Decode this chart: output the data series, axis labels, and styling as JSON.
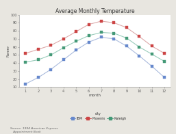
{
  "title": "Average Monthly Temperature",
  "xlabel": "month",
  "ylabel": "Farenr",
  "months": [
    1,
    2,
    3,
    4,
    5,
    6,
    7,
    8,
    9,
    10,
    11,
    12
  ],
  "series": [
    {
      "key": "IBM",
      "values": [
        14,
        22,
        32,
        44,
        56,
        66,
        72,
        70,
        61,
        49,
        36,
        22
      ],
      "color": "#6688cc",
      "line_color": "#aabbdd",
      "marker": "s",
      "label": "IBM"
    },
    {
      "key": "Phoenix",
      "values": [
        52,
        57,
        62,
        70,
        79,
        88,
        92,
        90,
        84,
        73,
        61,
        52
      ],
      "color": "#cc4444",
      "line_color": "#ddaaaa",
      "marker": "s",
      "label": "Phoenix"
    },
    {
      "key": "Raleigh",
      "values": [
        41,
        44,
        50,
        59,
        67,
        74,
        78,
        77,
        71,
        60,
        51,
        42
      ],
      "color": "#449977",
      "line_color": "#99ccbb",
      "marker": "s",
      "label": "Raleigh"
    }
  ],
  "ylim": [
    10,
    100
  ],
  "yticks": [
    10,
    20,
    30,
    40,
    50,
    60,
    70,
    80,
    90,
    100
  ],
  "xticks": [
    1,
    2,
    3,
    4,
    5,
    6,
    7,
    8,
    9,
    10,
    11,
    12
  ],
  "source_text": "Source: 1994 American Express\n   Appointment Book",
  "legend_city_label": "city",
  "background_color": "#e8e6e0",
  "plot_bg": "#ffffff"
}
